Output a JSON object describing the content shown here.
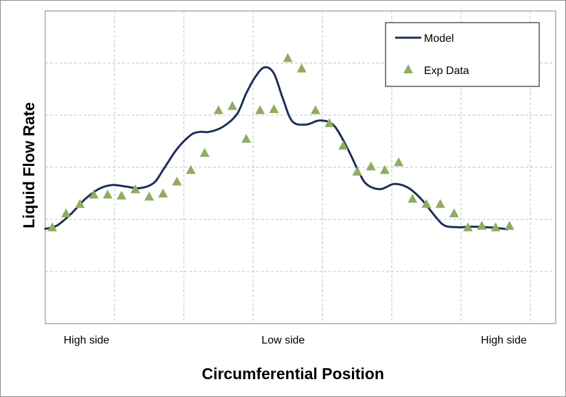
{
  "chart_data": {
    "type": "line",
    "xlabel": "Circumferential Position",
    "ylabel": "Liquid Flow Rate",
    "x_tick_labels": [
      "High side",
      "Low side",
      "High side"
    ],
    "x_tick_positions": [
      0,
      0.5,
      1
    ],
    "xlim": [
      -0.015,
      1.09
    ],
    "ylim": [
      0,
      6
    ],
    "grid": true,
    "legend": "top-right",
    "series": [
      {
        "name": "Model",
        "type": "line",
        "color": "#1c2d5a",
        "x": [
          -0.015,
          0.01,
          0.04,
          0.07,
          0.1,
          0.13,
          0.16,
          0.19,
          0.22,
          0.24,
          0.27,
          0.3,
          0.32,
          0.34,
          0.37,
          0.4,
          0.42,
          0.44,
          0.46,
          0.48,
          0.5,
          0.52,
          0.55,
          0.58,
          0.61,
          0.64,
          0.66,
          0.68,
          0.71,
          0.74,
          0.77,
          0.8,
          0.83,
          0.85,
          0.88,
          0.91,
          0.94,
          0.96,
          0.985
        ],
        "y": [
          1.82,
          1.88,
          2.1,
          2.38,
          2.58,
          2.66,
          2.63,
          2.6,
          2.7,
          2.95,
          3.35,
          3.62,
          3.68,
          3.68,
          3.78,
          4.02,
          4.42,
          4.74,
          4.92,
          4.8,
          4.3,
          3.88,
          3.82,
          3.9,
          3.8,
          3.35,
          2.98,
          2.68,
          2.58,
          2.68,
          2.61,
          2.38,
          2.05,
          1.88,
          1.85,
          1.86,
          1.85,
          1.84,
          1.81
        ]
      },
      {
        "name": "Exp Data",
        "type": "scatter",
        "color": "#8fad5f",
        "marker": "triangle",
        "x": [
          0.0,
          0.03,
          0.06,
          0.09,
          0.12,
          0.15,
          0.18,
          0.21,
          0.24,
          0.27,
          0.3,
          0.33,
          0.36,
          0.39,
          0.42,
          0.45,
          0.48,
          0.51,
          0.54,
          0.57,
          0.6,
          0.63,
          0.66,
          0.69,
          0.72,
          0.75,
          0.78,
          0.81,
          0.84,
          0.87,
          0.9,
          0.93,
          0.96,
          0.99
        ],
        "y": [
          1.85,
          2.12,
          2.3,
          2.48,
          2.48,
          2.46,
          2.58,
          2.44,
          2.5,
          2.73,
          2.95,
          3.28,
          4.1,
          4.18,
          3.55,
          4.1,
          4.12,
          5.1,
          4.9,
          4.1,
          3.85,
          3.42,
          2.92,
          3.02,
          2.95,
          3.1,
          2.4,
          2.3,
          2.3,
          2.12,
          1.85,
          1.88,
          1.85,
          1.88
        ]
      }
    ]
  }
}
